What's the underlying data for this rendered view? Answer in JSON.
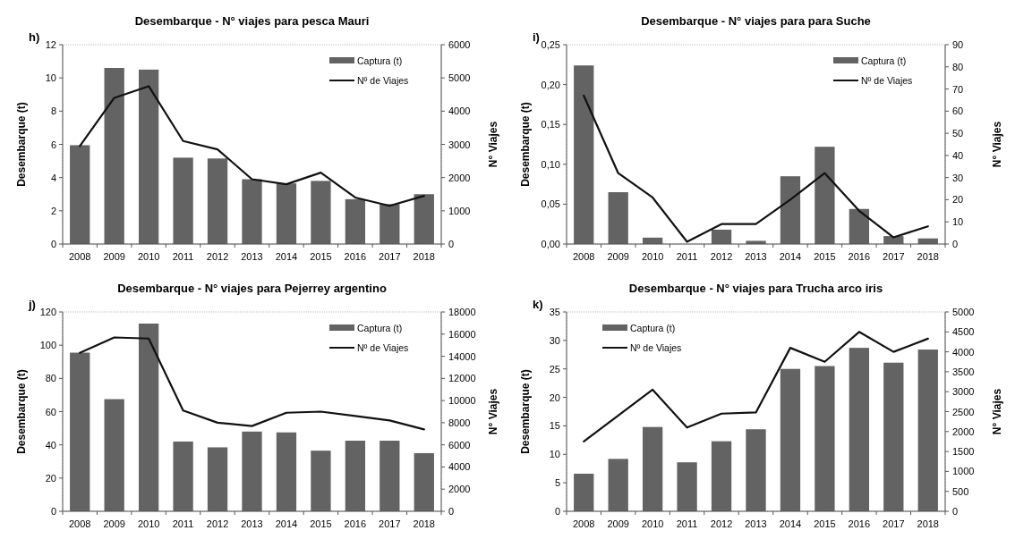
{
  "chart_data": [
    {
      "type": "bar",
      "title": "Desembarque - N° viajes para pesca Mauri",
      "annotations": [
        "h)"
      ],
      "ylabel": "Desembarque (t)",
      "y2label": "N° Viajes",
      "categories": [
        "2008",
        "2009",
        "2010",
        "2011",
        "2012",
        "2013",
        "2014",
        "2015",
        "2016",
        "2017",
        "2018"
      ],
      "series": [
        {
          "name": "Captura (t)",
          "color": "#636363",
          "values": [
            5.95,
            10.6,
            10.5,
            5.2,
            5.15,
            3.9,
            3.65,
            3.8,
            2.7,
            2.4,
            3.0
          ]
        },
        {
          "name": "Nº de Viajes",
          "type": "line",
          "axis": "y2",
          "color": "#111111",
          "values": [
            2950,
            4400,
            4750,
            3100,
            2850,
            1950,
            1800,
            2150,
            1400,
            1150,
            1450
          ]
        }
      ],
      "ylim": [
        0,
        12
      ],
      "yticks": [
        0,
        2,
        4,
        6,
        8,
        10,
        12
      ],
      "y2lim": [
        0,
        6000
      ],
      "y2ticks": [
        0,
        1000,
        2000,
        3000,
        4000,
        5000,
        6000
      ],
      "legend": "top right"
    },
    {
      "type": "bar",
      "title": "Desembarque - N° viajes para para Suche",
      "annotations": [
        "i)"
      ],
      "ylabel": "Desembarque (t)",
      "y2label": "N° Viajes",
      "categories": [
        "2008",
        "2009",
        "2010",
        "2011",
        "2012",
        "2013",
        "2014",
        "2015",
        "2016",
        "2017",
        "2018"
      ],
      "series": [
        {
          "name": "Captura (t)",
          "color": "#636363",
          "values": [
            0.224,
            0.065,
            0.008,
            null,
            0.018,
            0.004,
            0.085,
            0.122,
            0.044,
            0.01,
            0.007
          ]
        },
        {
          "name": "Nº de Viajes",
          "type": "line",
          "axis": "y2",
          "color": "#111111",
          "values": [
            67,
            32,
            21,
            1,
            9,
            9,
            20,
            32,
            15,
            3,
            8
          ]
        }
      ],
      "ylim": [
        0,
        0.25
      ],
      "yticks": [
        {
          "value": 0,
          "label": "0,00"
        },
        {
          "value": 0.05,
          "label": "0,05"
        },
        {
          "value": 0.1,
          "label": "0,10"
        },
        {
          "value": 0.15,
          "label": "0,15"
        },
        {
          "value": 0.2,
          "label": "0,20"
        },
        {
          "value": 0.25,
          "label": "0,25"
        }
      ],
      "y2lim": [
        0,
        90
      ],
      "y2ticks": [
        0,
        10,
        20,
        30,
        40,
        50,
        60,
        70,
        80,
        90
      ],
      "legend": "top right"
    },
    {
      "type": "bar",
      "title": "Desembarque - N° viajes para Pejerrey argentino",
      "annotations": [
        "j)"
      ],
      "ylabel": "Desembarque (t)",
      "y2label": "N° Viajes",
      "categories": [
        "2008",
        "2009",
        "2010",
        "2011",
        "2012",
        "2013",
        "2014",
        "2015",
        "2016",
        "2017",
        "2018"
      ],
      "series": [
        {
          "name": "Captura (t)",
          "color": "#636363",
          "values": [
            95.5,
            67.5,
            113,
            42,
            38.5,
            48,
            47.5,
            36.5,
            42.5,
            42.5,
            35
          ]
        },
        {
          "name": "Nº de Viajes",
          "type": "line",
          "axis": "y2",
          "color": "#111111",
          "values": [
            14300,
            15700,
            15600,
            9100,
            8000,
            7700,
            8900,
            9000,
            8600,
            8200,
            7400
          ]
        }
      ],
      "ylim": [
        0,
        120
      ],
      "yticks": [
        0,
        20,
        40,
        60,
        80,
        100,
        120
      ],
      "y2lim": [
        0,
        18000
      ],
      "y2ticks": [
        0,
        2000,
        4000,
        6000,
        8000,
        10000,
        12000,
        14000,
        16000,
        18000
      ],
      "legend": "top right"
    },
    {
      "type": "bar",
      "title": "Desembarque - N° viajes para Trucha arco iris",
      "annotations": [
        "k)"
      ],
      "ylabel": "Desembarque (t)",
      "y2label": "N° Viajes",
      "categories": [
        "2008",
        "2009",
        "2010",
        "2011",
        "2012",
        "2013",
        "2014",
        "2015",
        "2016",
        "2017",
        "2018"
      ],
      "series": [
        {
          "name": "Captura (t)",
          "color": "#636363",
          "values": [
            6.6,
            9.2,
            14.8,
            8.6,
            12.3,
            14.4,
            25,
            25.5,
            28.7,
            26.1,
            28.4
          ]
        },
        {
          "name": "Nº de Viajes",
          "type": "line",
          "axis": "y2",
          "color": "#111111",
          "values": [
            1750,
            2400,
            3050,
            2100,
            2450,
            2480,
            4100,
            3750,
            4500,
            4000,
            4330
          ]
        }
      ],
      "ylim": [
        0,
        35
      ],
      "yticks": [
        0,
        5,
        10,
        15,
        20,
        25,
        30,
        35
      ],
      "y2lim": [
        0,
        5000
      ],
      "y2ticks": [
        0,
        500,
        1000,
        1500,
        2000,
        2500,
        3000,
        3500,
        4000,
        4500,
        5000
      ],
      "legend": "top left"
    }
  ]
}
